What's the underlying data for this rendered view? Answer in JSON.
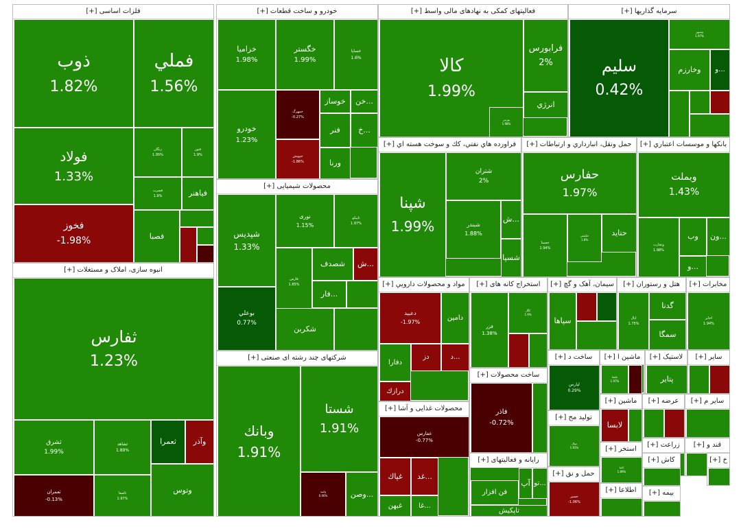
{
  "colors": {
    "up": "#208a08",
    "up_strong": "#065a06",
    "down": "#8a0808",
    "down_strong": "#4a0000",
    "flat": "#1e7a0a"
  },
  "chart_data": {
    "type": "treemap",
    "sectors": [
      {
        "name": "فلزات اساسی [+]",
        "tickers": [
          {
            "symbol": "ذوب",
            "change": "1.82%"
          },
          {
            "symbol": "فملي",
            "change": "1.56%"
          },
          {
            "symbol": "فولاد",
            "change": "1.33%"
          },
          {
            "symbol": "زنگان",
            "change": "1.95%"
          },
          {
            "symbol": "فنور",
            "change": "1.9%"
          },
          {
            "symbol": "فسرب",
            "change": "1.9%"
          },
          {
            "symbol": "فیاهنر",
            "change": ""
          },
          {
            "symbol": "فخوز",
            "change": "-1.98%"
          },
          {
            "symbol": "فصبا",
            "change": ""
          }
        ]
      },
      {
        "name": "انبوه سازی، املاک و مستغلات [+]",
        "tickers": [
          {
            "symbol": "ثفارس",
            "change": "1.23%"
          },
          {
            "symbol": "ثشرق",
            "change": "1.99%"
          },
          {
            "symbol": "ثشاهد",
            "change": "1.89%"
          },
          {
            "symbol": "ثعمرا",
            "change": ""
          },
          {
            "symbol": "وآذر",
            "change": ""
          },
          {
            "symbol": "ثعمران",
            "change": "-0.13%"
          },
          {
            "symbol": "ثاصفا",
            "change": "1.97%"
          },
          {
            "symbol": "وتوس",
            "change": ""
          }
        ]
      },
      {
        "name": "خودرو و ساخت قطعات [+]",
        "tickers": [
          {
            "symbol": "خزامیا",
            "change": "1.98%"
          },
          {
            "symbol": "خگستر",
            "change": "1.99%"
          },
          {
            "symbol": "خساپا",
            "change": "1.6%"
          },
          {
            "symbol": "خمهرگ",
            "change": "-0.27%"
          },
          {
            "symbol": "خوساز",
            "change": ""
          },
          {
            "symbol": "خن...",
            "change": ""
          },
          {
            "symbol": "خودرو",
            "change": "1.23%"
          },
          {
            "symbol": "خپویش",
            "change": "-1.86%"
          },
          {
            "symbol": "فنر",
            "change": ""
          },
          {
            "symbol": "خ...",
            "change": ""
          },
          {
            "symbol": "ورنا",
            "change": ""
          }
        ]
      },
      {
        "name": "محصولات شیمیایی [+]",
        "tickers": [
          {
            "symbol": "شپدیس",
            "change": "1.33%"
          },
          {
            "symbol": "نوری",
            "change": "1.15%"
          },
          {
            "symbol": "تاپیکو",
            "change": "1.97%"
          },
          {
            "symbol": "شصدف",
            "change": ""
          },
          {
            "symbol": "ش...",
            "change": ""
          },
          {
            "symbol": "فارس",
            "change": "1.85%"
          },
          {
            "symbol": "بوعلي",
            "change": "0.77%"
          },
          {
            "symbol": "فار...",
            "change": ""
          },
          {
            "symbol": "شکربن",
            "change": ""
          }
        ]
      },
      {
        "name": "شرکتهای چند رشته ای صنعتی [+]",
        "tickers": [
          {
            "symbol": "وبانك",
            "change": "1.91%"
          },
          {
            "symbol": "شستا",
            "change": "1.91%"
          },
          {
            "symbol": "وامید",
            "change": "0.06%"
          },
          {
            "symbol": "وصن...",
            "change": ""
          }
        ]
      },
      {
        "name": "فعالیتهای کمکی به نهادهای مالی واسط [+]",
        "tickers": [
          {
            "symbol": "کالا",
            "change": "1.99%"
          },
          {
            "symbol": "فرابورس",
            "change": "2%"
          },
          {
            "symbol": "انرژي",
            "change": ""
          },
          {
            "symbol": "بورس",
            "change": "1.98%"
          }
        ]
      },
      {
        "name": "سرمایه گذاریها [+]",
        "tickers": [
          {
            "symbol": "سليم",
            "change": "0.42%"
          },
          {
            "symbol": "وسپهر",
            "change": "1.97%"
          },
          {
            "symbol": "وخارزم",
            "change": ""
          },
          {
            "symbol": "و...",
            "change": ""
          }
        ]
      },
      {
        "name": "فراورده هاي نفتي، كك و سوخت هسته اي [+]",
        "tickers": [
          {
            "symbol": "شپنا",
            "change": "1.99%"
          },
          {
            "symbol": "شتران",
            "change": "2%"
          },
          {
            "symbol": "شبندر",
            "change": "1.88%"
          },
          {
            "symbol": "ش...",
            "change": ""
          },
          {
            "symbol": "شسپا",
            "change": ""
          }
        ]
      },
      {
        "name": "حمل ونقل، انبارداري و ارتباطات [+]",
        "tickers": [
          {
            "symbol": "حفارس",
            "change": "1.97%"
          },
          {
            "symbol": "حسینا",
            "change": "1.94%"
          },
          {
            "symbol": "حکشتی",
            "change": "1.8%"
          },
          {
            "symbol": "حتاید",
            "change": ""
          }
        ]
      },
      {
        "name": "بانکها و موسسات اعتباري [+]",
        "tickers": [
          {
            "symbol": "وبملت",
            "change": "1.43%"
          },
          {
            "symbol": "وتجارت",
            "change": "1.98%"
          },
          {
            "symbol": "وب",
            "change": ""
          },
          {
            "symbol": "ون...",
            "change": ""
          },
          {
            "symbol": "و...",
            "change": ""
          }
        ]
      },
      {
        "name": "مواد و محصولات دارويي [+]",
        "tickers": [
          {
            "symbol": "دعبيد",
            "change": "-1.97%"
          },
          {
            "symbol": "دامین",
            "change": ""
          },
          {
            "symbol": "دز",
            "change": ""
          },
          {
            "symbol": "د...",
            "change": ""
          },
          {
            "symbol": "دفارا",
            "change": ""
          },
          {
            "symbol": "درازك",
            "change": ""
          }
        ]
      },
      {
        "name": "استخراج کانه های [+]",
        "tickers": [
          {
            "symbol": "فزر",
            "change": "1.38%"
          },
          {
            "symbol": "کگل",
            "change": "1.9%"
          }
        ]
      },
      {
        "name": "سیمان، آهک و گچ [+]",
        "tickers": [
          {
            "symbol": "سپاها",
            "change": ""
          }
        ]
      },
      {
        "name": "هتل و رستوران [+]",
        "tickers": [
          {
            "symbol": "گدنا",
            "change": ""
          },
          {
            "symbol": "سمگا",
            "change": ""
          },
          {
            "symbol": "اپال",
            "change": "1.75%"
          }
        ]
      },
      {
        "name": "مخابرات [+]",
        "tickers": [
          {
            "symbol": "اخابر",
            "change": "1.94%"
          }
        ]
      },
      {
        "name": "ساخت د [+]",
        "tickers": [
          {
            "symbol": "لپارس",
            "change": "0.29%"
          }
        ]
      },
      {
        "name": "ماشین ا [+]",
        "tickers": [
          {
            "symbol": "تکشا",
            "change": "1.97%"
          }
        ]
      },
      {
        "name": "لاستیک [+]",
        "tickers": [
          {
            "symbol": "پتاير",
            "change": ""
          }
        ]
      },
      {
        "name": "سایر [+]",
        "tickers": []
      },
      {
        "name": "ساخت محصولات [+]",
        "tickers": [
          {
            "symbol": "فاذر",
            "change": "-0.72%"
          }
        ]
      },
      {
        "name": "تولید مح [+]",
        "tickers": [
          {
            "symbol": "تیپال",
            "change": "1.91%"
          }
        ]
      },
      {
        "name": "ماشین [+]",
        "tickers": [
          {
            "symbol": "لابسا",
            "change": ""
          }
        ]
      },
      {
        "name": "عرضه [+]",
        "tickers": []
      },
      {
        "name": "سایر م [+]",
        "tickers": []
      },
      {
        "name": "زراعت [+]",
        "tickers": []
      },
      {
        "name": "قند و [+]",
        "tickers": []
      },
      {
        "name": "محصولات غذایی و آشا [+]",
        "tickers": [
          {
            "symbol": "غفارس",
            "change": "-0.77%"
          },
          {
            "symbol": "غپاك",
            "change": ""
          },
          {
            "symbol": "غد...",
            "change": ""
          },
          {
            "symbol": "غبهن",
            "change": ""
          },
          {
            "symbol": "غا...",
            "change": ""
          }
        ]
      },
      {
        "name": "رایانه و فعالیتهای [+]",
        "tickers": [
          {
            "symbol": "فن افزار",
            "change": ""
          },
          {
            "symbol": "آپ",
            "change": ""
          },
          {
            "symbol": "تو...",
            "change": ""
          },
          {
            "symbol": "تاپکیش",
            "change": ""
          }
        ]
      },
      {
        "name": "حمل و نق [+]",
        "tickers": [
          {
            "symbol": "حسیر",
            "change": "-1.06%"
          }
        ]
      },
      {
        "name": "استخر [+]",
        "tickers": [
          {
            "symbol": "کاما",
            "change": "1.89%"
          }
        ]
      },
      {
        "name": "کاش [+]",
        "tickers": []
      },
      {
        "name": "خ [+]",
        "tickers": []
      },
      {
        "name": "اطلاعا [+]",
        "tickers": []
      },
      {
        "name": "بیمه [+]",
        "tickers": []
      }
    ]
  }
}
